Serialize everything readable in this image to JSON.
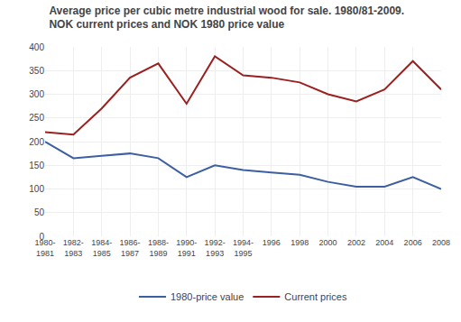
{
  "chart_data": {
    "type": "line",
    "title": "Average price per cubic metre industrial wood for sale. 1980/81-2009.",
    "subtitle": "NOK current prices and NOK 1980 price value",
    "categories": [
      "1980-\n1981",
      "1982-\n1983",
      "1984-\n1985",
      "1986-\n1987",
      "1988-\n1989",
      "1990-\n1991",
      "1992-\n1993",
      "1994-\n1995",
      "1996",
      "1998",
      "2000",
      "2002",
      "2004",
      "2006",
      "2008"
    ],
    "series": [
      {
        "name": "1980-price value",
        "color": "#3c5fa3",
        "values": [
          200,
          165,
          170,
          175,
          165,
          125,
          150,
          140,
          135,
          130,
          115,
          105,
          105,
          125,
          100
        ]
      },
      {
        "name": "Current prices",
        "color": "#9b2020",
        "values": [
          220,
          215,
          270,
          335,
          365,
          280,
          380,
          340,
          335,
          325,
          300,
          285,
          310,
          370,
          310
        ]
      }
    ],
    "ylim": [
      0,
      400
    ],
    "yticks": [
      0,
      50,
      100,
      150,
      200,
      250,
      300,
      350,
      400
    ],
    "grid": true,
    "legend": "bottom"
  }
}
